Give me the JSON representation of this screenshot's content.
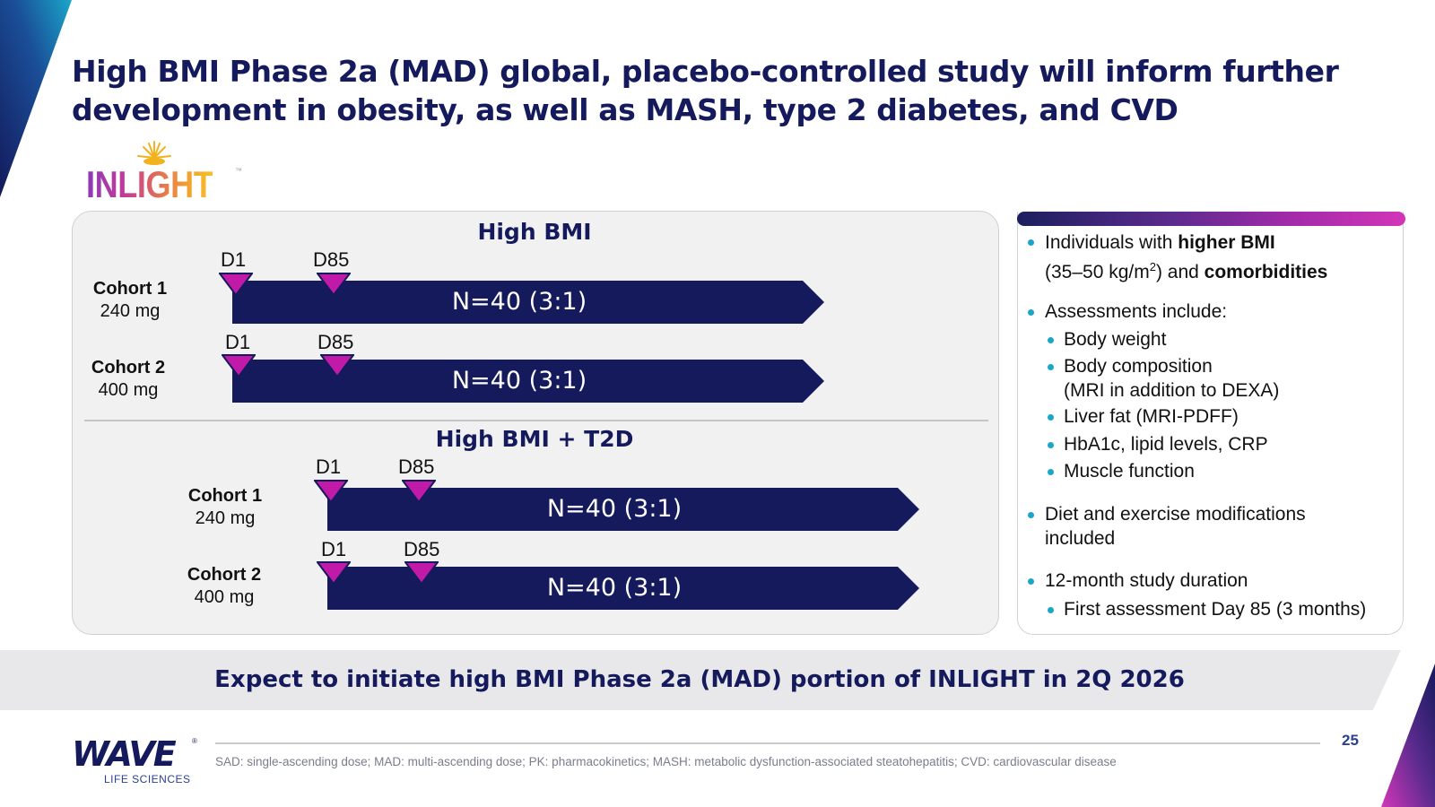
{
  "slide": {
    "title_line1": "High BMI Phase 2a (MAD) global, placebo-controlled study will inform further",
    "title_line2": "development in obesity, as well as MASH, type 2 diabetes, and CVD",
    "logo_text": "INLIGHT",
    "logo_tm": "™",
    "page_number": "25"
  },
  "colors": {
    "navy": "#141a5c",
    "marker_magenta": "#c21aa8",
    "bullet_cyan": "#19a6c8",
    "panel_gray": "#f1f1f2"
  },
  "groups": [
    {
      "title": "High BMI",
      "cohorts": [
        {
          "name": "Cohort 1",
          "dose": "240 mg",
          "d1": "D1",
          "d85": "D85",
          "n": "N=40 (3:1)"
        },
        {
          "name": "Cohort 2",
          "dose": "400 mg",
          "d1": "D1",
          "d85": "D85",
          "n": "N=40 (3:1)"
        }
      ]
    },
    {
      "title": "High BMI + T2D",
      "cohorts": [
        {
          "name": "Cohort 1",
          "dose": "240 mg",
          "d1": "D1",
          "d85": "D85",
          "n": "N=40 (3:1)"
        },
        {
          "name": "Cohort 2",
          "dose": "400 mg",
          "d1": "D1",
          "d85": "D85",
          "n": "N=40 (3:1)"
        }
      ]
    }
  ],
  "bullets": {
    "b1_pre": "Individuals with ",
    "b1_bold": "higher BMI",
    "b1_line2_pre": "(35–50 kg/m",
    "b1_sup": "2",
    "b1_line2_mid": ") and ",
    "b1_line2_bold": "comorbidities",
    "b2": "Assessments include:",
    "b2_items": [
      "Body weight",
      "Body composition",
      "(MRI in addition to DEXA)",
      "Liver fat (MRI-PDFF)",
      "HbA1c, lipid levels, CRP",
      "Muscle function"
    ],
    "b3_line1": "Diet and exercise modifications",
    "b3_line2": "included",
    "b4": "12-month study duration",
    "b4_sub": "First assessment Day 85 (3 months)"
  },
  "banner": "Expect to initiate high BMI Phase 2a (MAD) portion of INLIGHT in 2Q 2026",
  "footnote": "SAD: single-ascending dose; MAD: multi-ascending dose; PK: pharmacokinetics; MASH: metabolic dysfunction-associated steatohepatitis; CVD: cardiovascular disease",
  "company": {
    "name": "WAVE",
    "subtitle": "LIFE SCIENCES",
    "reg": "®"
  }
}
